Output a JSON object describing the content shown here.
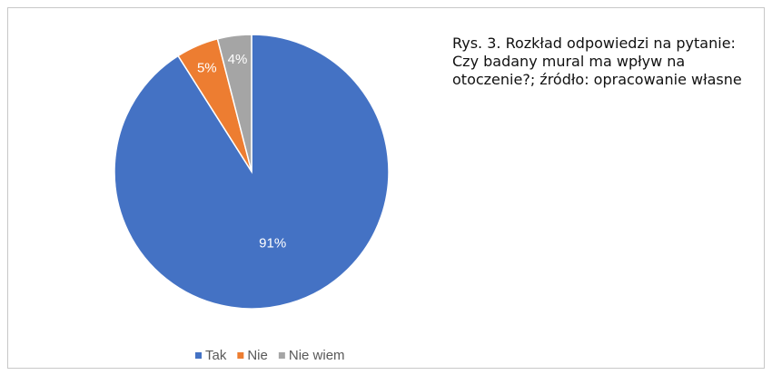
{
  "chart_data": {
    "type": "pie",
    "title": "Rys. 3. Rozkład odpowiedzi na pytanie: Czy badany mural ma wpływ na otoczenie?; źródło: opracowanie własne",
    "categories": [
      "Tak",
      "Nie",
      "Nie wiem"
    ],
    "values": [
      91,
      5,
      4
    ],
    "value_labels": [
      "91%",
      "5%",
      "4%"
    ],
    "colors": [
      "#4472c4",
      "#ed7d31",
      "#a5a5a5"
    ],
    "legend": "bottom"
  }
}
